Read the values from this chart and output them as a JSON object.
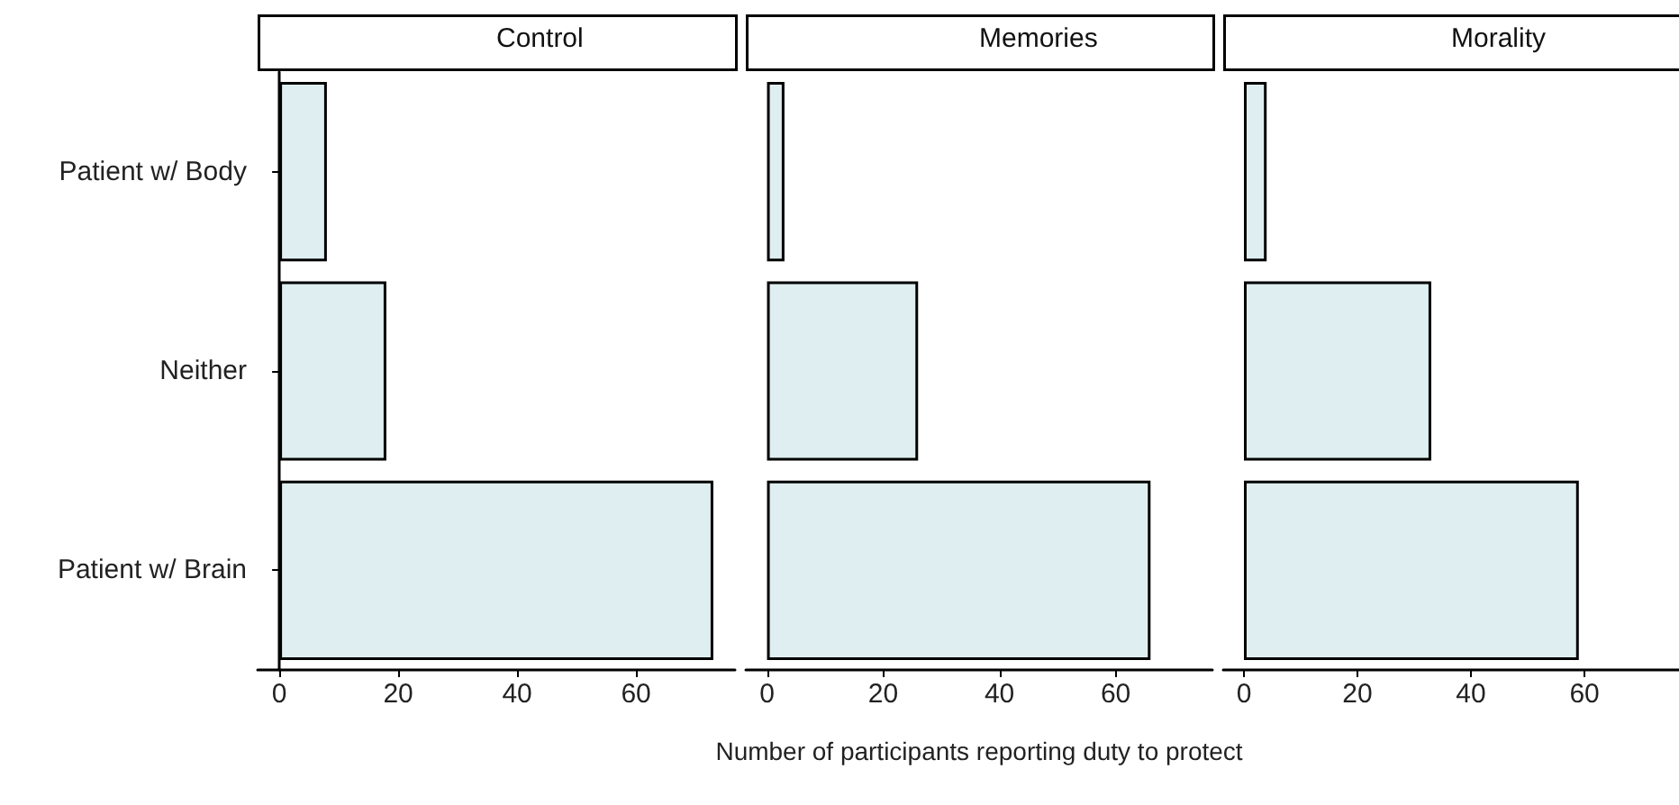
{
  "chart_data": [
    {
      "type": "bar",
      "orientation": "horizontal",
      "title": "Control",
      "categories": [
        "Patient w/ Body",
        "Neither",
        "Patient w/ Brain"
      ],
      "values": [
        8,
        18,
        73
      ],
      "color": "#dfeef0",
      "xlim": [
        -3.65,
        76.65
      ],
      "xticks": [
        0,
        20,
        40,
        60
      ]
    },
    {
      "type": "bar",
      "orientation": "horizontal",
      "title": "Memories",
      "xlabel": "Number of participants reporting duty to protect",
      "categories": [
        null,
        null,
        null
      ],
      "values": [
        3,
        26,
        66
      ],
      "color": "#dfeef0",
      "xlim": [
        -3.65,
        76.65
      ],
      "xticks": [
        0,
        20,
        40,
        60
      ],
      "tick_labels": "x"
    },
    {
      "type": "bar",
      "orientation": "horizontal",
      "title": "Morality",
      "categories": [
        null,
        null,
        null
      ],
      "values": [
        4,
        33,
        59
      ],
      "color": "#dfeef0",
      "xlim": [
        -3.65,
        76.65
      ],
      "xticks": [
        0,
        20,
        40,
        60
      ],
      "tick_labels": "x"
    }
  ]
}
